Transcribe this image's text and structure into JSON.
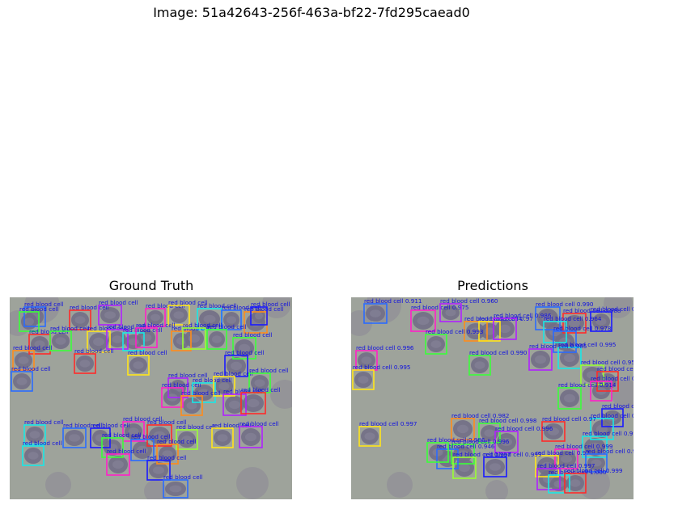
{
  "figure": {
    "title": "Image: 51a42643-256f-463a-bf22-7fd295caead0"
  },
  "panels": {
    "ground_truth": {
      "title": "Ground Truth"
    },
    "predictions": {
      "title": "Predictions"
    }
  },
  "palette": [
    "#ff2a2a",
    "#ffe51a",
    "#3aff3a",
    "#18e8e8",
    "#2a6bff",
    "#b020ff",
    "#ff20c8",
    "#ff8c1a",
    "#1a1aff",
    "#99ff33"
  ],
  "cell_color": "#716e86",
  "background_color": "#9ea39b",
  "gt_label": "red blood cell",
  "gt_boxes": [
    {
      "label": "red blood cell",
      "color": "#2a6bff"
    },
    {
      "label": "red blood cell",
      "color": "#3aff3a"
    },
    {
      "label": "red blood cell",
      "color": "#ff2a2a"
    },
    {
      "label": "red blood cell",
      "color": "#b020ff"
    },
    {
      "label": "red blood cell",
      "color": "#ff20c8"
    },
    {
      "label": "red blood cell",
      "color": "#ffe51a"
    },
    {
      "label": "red blood cell",
      "color": "#18e8e8"
    },
    {
      "label": "red blood cell",
      "color": "#2a6bff"
    },
    {
      "label": "red blood cell",
      "color": "#ff8c1a"
    },
    {
      "label": "red blood cell",
      "color": "#1a1aff"
    },
    {
      "label": "red blood cell",
      "color": "#ff2a2a"
    },
    {
      "label": "red blood cell",
      "color": "#3aff3a"
    },
    {
      "label": "red blood cell",
      "color": "#ffe51a"
    },
    {
      "label": "red blood cell",
      "color": "#b020ff"
    },
    {
      "label": "red blood cell",
      "color": "#18e8e8"
    },
    {
      "label": "red blood cell",
      "color": "#ff20c8"
    },
    {
      "label": "red blood cell",
      "color": "#ff8c1a"
    },
    {
      "label": "red blood cell",
      "color": "#99ff33"
    },
    {
      "label": "red blood cell",
      "color": "#3aff3a"
    },
    {
      "label": "red blood cell",
      "color": "#3aff3a"
    },
    {
      "label": "red blood cell",
      "color": "#ff8c1a"
    },
    {
      "label": "red blood cell",
      "color": "#ff2a2a"
    },
    {
      "label": "red blood cell",
      "color": "#ffe51a"
    },
    {
      "label": "red blood cell",
      "color": "#1a1aff"
    },
    {
      "label": "red blood cell",
      "color": "#2a6bff"
    },
    {
      "label": "red blood cell",
      "color": "#b020ff"
    },
    {
      "label": "red blood cell",
      "color": "#ff20c8"
    },
    {
      "label": "red blood cell",
      "color": "#18e8e8"
    },
    {
      "label": "red blood cell",
      "color": "#ffe51a"
    },
    {
      "label": "red blood cell",
      "color": "#3aff3a"
    },
    {
      "label": "red blood cell",
      "color": "#ff8c1a"
    },
    {
      "label": "red blood cell",
      "color": "#b020ff"
    },
    {
      "label": "red blood cell",
      "color": "#ff2a2a"
    },
    {
      "label": "red blood cell",
      "color": "#18e8e8"
    },
    {
      "label": "red blood cell",
      "color": "#2a6bff"
    },
    {
      "label": "red blood cell",
      "color": "#1a1aff"
    },
    {
      "label": "red blood cell",
      "color": "#ff20c8"
    },
    {
      "label": "red blood cell",
      "color": "#ff2a2a"
    },
    {
      "label": "red blood cell",
      "color": "#99ff33"
    },
    {
      "label": "red blood cell",
      "color": "#ffe51a"
    },
    {
      "label": "red blood cell",
      "color": "#b020ff"
    },
    {
      "label": "red blood cell",
      "color": "#18e8e8"
    },
    {
      "label": "red blood cell",
      "color": "#3aff3a"
    },
    {
      "label": "red blood cell",
      "color": "#2a6bff"
    },
    {
      "label": "red blood cell",
      "color": "#ff8c1a"
    },
    {
      "label": "red blood cell",
      "color": "#ff20c8"
    },
    {
      "label": "red blood cell",
      "color": "#1a1aff"
    },
    {
      "label": "red blood cell",
      "color": "#2a6bff"
    }
  ],
  "pred_boxes": [
    {
      "label": "red blood cell 0.911",
      "color": "#2a6bff"
    },
    {
      "label": "red blood cell 0.975",
      "color": "#ff20c8"
    },
    {
      "label": "red blood cell 0.960",
      "color": "#b020ff"
    },
    {
      "label": "red blood cell 0.990",
      "color": "#2a6bff"
    },
    {
      "label": "red blood cell 0.988",
      "color": "#ff2a2a"
    },
    {
      "label": "red blood cell 0.991",
      "color": "#1a1aff"
    },
    {
      "label": "red blood cell 0.854",
      "color": "#ff8c1a"
    },
    {
      "label": "red blood cell 0.97",
      "color": "#ffe51a"
    },
    {
      "label": "red blood cell 0.986",
      "color": "#b020ff"
    },
    {
      "label": "red blood cell 0.964",
      "color": "#18e8e8"
    },
    {
      "label": "red blood cell 0.993",
      "color": "#3aff3a"
    },
    {
      "label": "red blood cell 0.978",
      "color": "#2a6bff"
    },
    {
      "label": "red blood cell 0.995",
      "color": "#18e8e8"
    },
    {
      "label": "red blood cell 0.996",
      "color": "#ff20c8"
    },
    {
      "label": "red blood cell 0.990",
      "color": "#3aff3a"
    },
    {
      "label": "red blood cell 0.985",
      "color": "#b020ff"
    },
    {
      "label": "red blood cell 0.995",
      "color": "#ffe51a"
    },
    {
      "label": "red blood cell 0.951",
      "color": "#99ff33"
    },
    {
      "label": "red blood cell 0.988",
      "color": "#ff2a2a"
    },
    {
      "label": "red blood cell 0.991",
      "color": "#ff20c8"
    },
    {
      "label": "red blood cell 0.914",
      "color": "#3aff3a"
    },
    {
      "label": "red blood cell 0.963",
      "color": "#1a1aff"
    },
    {
      "label": "red blood cell 0.958",
      "color": "#18e8e8"
    },
    {
      "label": "red blood cell 0.982",
      "color": "#ff8c1a"
    },
    {
      "label": "red blood cell 0.998",
      "color": "#3aff3a"
    },
    {
      "label": "red blood cell 0.97",
      "color": "#ff2a2a"
    },
    {
      "label": "red blood cell 0.996",
      "color": "#b020ff"
    },
    {
      "label": "red blood cell 0.997",
      "color": "#ffe51a"
    },
    {
      "label": "red blood cell 0.999",
      "color": "#18e8e8"
    },
    {
      "label": "red blood cell 0.996",
      "color": "#3aff3a"
    },
    {
      "label": "red blood cell 0.946",
      "color": "#2a6bff"
    },
    {
      "label": "red blood cell 0.999",
      "color": "#ff20c8"
    },
    {
      "label": "red blood cell 0.97",
      "color": "#ffe51a"
    },
    {
      "label": "red blood cell 0.955",
      "color": "#2a6bff"
    },
    {
      "label": "red blood cell 0.997",
      "color": "#99ff33"
    },
    {
      "label": "red blood cell 0.999",
      "color": "#1a1aff"
    },
    {
      "label": "red blood cell 0.997",
      "color": "#b020ff"
    },
    {
      "label": "red blood cell 1.000",
      "color": "#18e8e8"
    },
    {
      "label": "red blood cell 0.999",
      "color": "#ff2a2a"
    },
    {
      "label": "red blood cell 0.986",
      "color": "#3aff3a"
    }
  ]
}
